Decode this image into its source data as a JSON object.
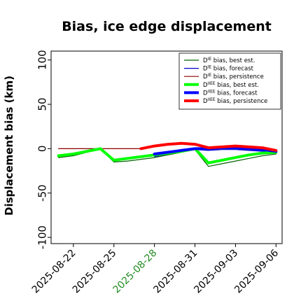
{
  "chart_data": {
    "type": "line",
    "title": "Bias, ice edge displacement",
    "ylabel": "Displacement bias (km)",
    "xlabel": "",
    "ylim": [
      -107,
      110
    ],
    "yticks": [
      100,
      50,
      0,
      -50,
      -100
    ],
    "xticks": [
      {
        "label": "2025-08-22",
        "day": 22,
        "color": "#000000"
      },
      {
        "label": "2025-08-25",
        "day": 25,
        "color": "#000000"
      },
      {
        "label": "2025-08-28",
        "day": 28,
        "color": "#228B22"
      },
      {
        "label": "2025-08-31",
        "day": 31,
        "color": "#000000"
      },
      {
        "label": "2025-09-03",
        "day": 34,
        "color": "#000000"
      },
      {
        "label": "2025-09-06",
        "day": 37,
        "color": "#000000"
      }
    ],
    "legend_position": "upper-right",
    "series": [
      {
        "name": "D^IE bias, best est.",
        "sup": "IE",
        "pre": "D",
        "post": " bias, best est.",
        "color": "#006400",
        "width": 1.2,
        "points": [
          [
            20.9,
            -10
          ],
          [
            22,
            -8
          ],
          [
            23,
            -4
          ],
          [
            24,
            0
          ],
          [
            25,
            -15
          ],
          [
            26,
            -14
          ],
          [
            27,
            -12
          ],
          [
            28,
            -10
          ],
          [
            29,
            -7
          ],
          [
            30,
            -4
          ],
          [
            31,
            -1
          ],
          [
            32,
            -20
          ],
          [
            33,
            -17
          ],
          [
            34,
            -14
          ],
          [
            35,
            -11
          ],
          [
            36,
            -8
          ],
          [
            37,
            -6
          ]
        ]
      },
      {
        "name": "D^IE bias, forecast",
        "sup": "IE",
        "pre": "D",
        "post": " bias, forecast",
        "color": "#0000cd",
        "width": 1.2,
        "points": [
          [
            28,
            -9
          ],
          [
            29,
            -6
          ],
          [
            30,
            -3
          ],
          [
            31,
            -1
          ],
          [
            32,
            -2
          ],
          [
            33,
            -1
          ],
          [
            34,
            -1
          ],
          [
            35,
            -2
          ],
          [
            36,
            -3
          ],
          [
            37,
            -5
          ]
        ]
      },
      {
        "name": "D^IE bias, persistence",
        "sup": "IE",
        "pre": "D",
        "post": " bias, persistence",
        "color": "#8b0000",
        "width": 1.2,
        "points": [
          [
            20.9,
            0
          ],
          [
            25,
            0
          ],
          [
            27,
            0
          ],
          [
            28,
            3
          ],
          [
            29,
            5
          ],
          [
            30,
            6
          ],
          [
            31,
            5
          ],
          [
            32,
            1
          ],
          [
            33,
            2
          ],
          [
            34,
            3
          ],
          [
            35,
            2
          ],
          [
            36,
            1
          ],
          [
            37,
            -2
          ]
        ]
      },
      {
        "name": "D^IIEE bias, best est.",
        "sup": "IIEE",
        "pre": "D",
        "post": " bias, best est.",
        "color": "#00ff00",
        "width": 4,
        "points": [
          [
            20.9,
            -8
          ],
          [
            22,
            -6
          ],
          [
            23,
            -3
          ],
          [
            24,
            0
          ],
          [
            25,
            -13
          ],
          [
            26,
            -11
          ],
          [
            27,
            -9
          ],
          [
            28,
            -7
          ],
          [
            29,
            -5
          ],
          [
            30,
            -3
          ],
          [
            31,
            0
          ],
          [
            32,
            -16
          ],
          [
            33,
            -13
          ],
          [
            34,
            -10
          ],
          [
            35,
            -7
          ],
          [
            36,
            -5
          ],
          [
            37,
            -4
          ]
        ]
      },
      {
        "name": "D^IIEE bias, forecast",
        "sup": "IIEE",
        "pre": "D",
        "post": " bias, forecast",
        "color": "#0000ff",
        "width": 4,
        "points": [
          [
            28,
            -6
          ],
          [
            29,
            -4
          ],
          [
            30,
            -2
          ],
          [
            31,
            0
          ],
          [
            32,
            0
          ],
          [
            33,
            1
          ],
          [
            34,
            1
          ],
          [
            35,
            0
          ],
          [
            36,
            -1
          ],
          [
            37,
            -3
          ]
        ]
      },
      {
        "name": "D^IIEE bias, persistence",
        "sup": "IIEE",
        "pre": "D",
        "post": " bias, persistence",
        "color": "#ff0000",
        "width": 4,
        "points": [
          [
            27,
            0
          ],
          [
            28,
            3
          ],
          [
            29,
            5
          ],
          [
            30,
            6
          ],
          [
            31,
            5
          ],
          [
            32,
            1
          ],
          [
            33,
            2
          ],
          [
            34,
            3
          ],
          [
            35,
            2
          ],
          [
            36,
            1
          ],
          [
            37,
            -2
          ]
        ]
      }
    ]
  }
}
